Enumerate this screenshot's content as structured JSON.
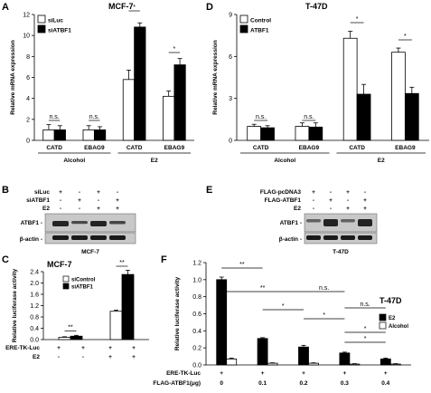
{
  "colors": {
    "filled": "#000000",
    "open": "#ffffff",
    "blot_bg": "#c8c8c8",
    "band": "#1a1a1a"
  },
  "panels": {
    "A": {
      "letter": "A",
      "title": "MCF-7"
    },
    "B": {
      "letter": "B",
      "cell": "MCF-7",
      "rows": [
        "siLuc",
        "siATBF1",
        "E2"
      ],
      "row_signs": [
        [
          "+",
          "-",
          "+",
          "-"
        ],
        [
          "-",
          "+",
          "-",
          "+"
        ],
        [
          "-",
          "-",
          "+",
          "+"
        ]
      ],
      "bands": [
        "ATBF1 -",
        "β-actin -"
      ]
    },
    "C": {
      "letter": "C",
      "title": "MCF-7",
      "row_labels": [
        "ERE-TK-Luc",
        "E2"
      ],
      "row_signs": [
        [
          "+",
          "+",
          "+",
          "+"
        ],
        [
          "-",
          "-",
          "+",
          "+"
        ]
      ]
    },
    "D": {
      "letter": "D",
      "title": "T-47D"
    },
    "E": {
      "letter": "E",
      "cell": "T-47D",
      "rows": [
        "FLAG-pcDNA3",
        "FLAG-ATBF1",
        "E2"
      ],
      "row_signs": [
        [
          "+",
          "-",
          "+",
          "-"
        ],
        [
          "-",
          "+",
          "-",
          "+"
        ],
        [
          "-",
          "-",
          "+",
          "+"
        ]
      ],
      "bands": [
        "ATBF1 -",
        "β-actin -"
      ]
    },
    "F": {
      "letter": "F",
      "title": "T-47D",
      "row_labels": [
        "ERE-TK-Luc",
        "FLAG-ATBF1(μg)"
      ],
      "ere_signs": [
        "+",
        "+",
        "+",
        "+",
        "+"
      ],
      "doses": [
        "0",
        "0.1",
        "0.2",
        "0.3",
        "0.4"
      ]
    }
  },
  "chart_data": [
    {
      "type": "bar",
      "panel": "A",
      "ylabel": "Relative mRNA expression",
      "ylim": [
        0,
        12
      ],
      "yticks": [
        0,
        2,
        4,
        6,
        8,
        10,
        12
      ],
      "categories": [
        "CATD",
        "EBAG9",
        "CATD",
        "EBAG9"
      ],
      "groups": [
        {
          "label": "Alcohol",
          "span": [
            0,
            1
          ]
        },
        {
          "label": "E2",
          "span": [
            2,
            3
          ]
        }
      ],
      "series": [
        {
          "name": "siLuc",
          "style": "open",
          "values": [
            1.0,
            1.0,
            5.8,
            4.2
          ],
          "errors": [
            0.5,
            0.4,
            0.9,
            0.5
          ]
        },
        {
          "name": "siATBF1",
          "style": "filled",
          "values": [
            1.0,
            1.0,
            10.8,
            7.2
          ],
          "errors": [
            0.4,
            0.3,
            0.4,
            0.6
          ]
        }
      ],
      "legend": "top-left",
      "annotations": [
        {
          "text": "n.s.",
          "cat": 0
        },
        {
          "text": "n.s.",
          "cat": 1
        },
        {
          "text": "*",
          "cat": 2
        },
        {
          "text": "*",
          "cat": 3
        }
      ]
    },
    {
      "type": "bar",
      "panel": "D",
      "ylabel": "Relative mRNA expression",
      "ylim": [
        0,
        9
      ],
      "yticks": [
        0,
        3,
        6,
        9
      ],
      "categories": [
        "CATD",
        "EBAG9",
        "CATD",
        "EBAG9"
      ],
      "groups": [
        {
          "label": "Alcohol",
          "span": [
            0,
            1
          ]
        },
        {
          "label": "E2",
          "span": [
            2,
            3
          ]
        }
      ],
      "series": [
        {
          "name": "Control",
          "style": "open",
          "values": [
            1.0,
            1.0,
            7.3,
            6.3
          ],
          "errors": [
            0.15,
            0.25,
            0.5,
            0.3
          ]
        },
        {
          "name": "ATBF1",
          "style": "filled",
          "values": [
            0.9,
            0.95,
            3.3,
            3.35
          ],
          "errors": [
            0.15,
            0.3,
            0.7,
            0.45
          ]
        }
      ],
      "legend": "top-left",
      "annotations": [
        {
          "text": "n.s.",
          "cat": 0
        },
        {
          "text": "n.s.",
          "cat": 1
        },
        {
          "text": "*",
          "cat": 2
        },
        {
          "text": "*",
          "cat": 3
        }
      ]
    },
    {
      "type": "bar",
      "panel": "C",
      "ylabel": "Relative luciferase activity",
      "ylim": [
        0,
        2.4
      ],
      "yticks": [
        0,
        0.4,
        0.8,
        1.2,
        1.6,
        2.0,
        2.4
      ],
      "categories": [
        "-E2",
        "+E2"
      ],
      "series": [
        {
          "name": "siControl",
          "style": "open",
          "values": [
            0.08,
            1.0
          ],
          "errors": [
            0.02,
            0.04
          ]
        },
        {
          "name": "siATBF1",
          "style": "filled",
          "values": [
            0.12,
            2.3
          ],
          "errors": [
            0.03,
            0.15
          ]
        }
      ],
      "legend": "top-left",
      "annotations": [
        {
          "text": "**",
          "cat": 0
        },
        {
          "text": "**",
          "cat": 1
        }
      ]
    },
    {
      "type": "bar",
      "panel": "F",
      "ylabel": "Relative luciferase activity",
      "ylim": [
        0,
        1.2
      ],
      "yticks": [
        0,
        0.2,
        0.4,
        0.6,
        0.8,
        1.0,
        1.2
      ],
      "categories": [
        "0",
        "0.1",
        "0.2",
        "0.3",
        "0.4"
      ],
      "series": [
        {
          "name": "E2",
          "style": "filled",
          "values": [
            1.0,
            0.31,
            0.21,
            0.14,
            0.07
          ],
          "errors": [
            0.03,
            0.01,
            0.02,
            0.01,
            0.01
          ]
        },
        {
          "name": "Alcohol",
          "style": "open",
          "values": [
            0.07,
            0.02,
            0.02,
            0.01,
            0.01
          ],
          "errors": [
            0.01,
            0.005,
            0.005,
            0.005,
            0.005
          ]
        }
      ],
      "legend": "right",
      "annotations": [
        {
          "text": "**"
        },
        {
          "text": "**"
        },
        {
          "text": "n.s."
        },
        {
          "text": "n.s."
        },
        {
          "text": "*"
        },
        {
          "text": "*"
        },
        {
          "text": "*"
        },
        {
          "text": "*"
        }
      ]
    }
  ]
}
